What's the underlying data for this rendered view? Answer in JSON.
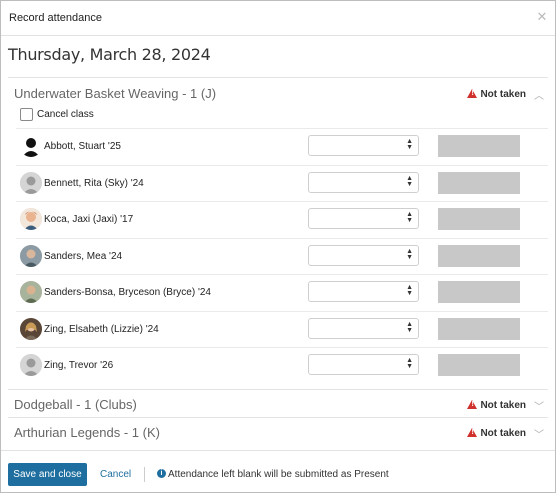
{
  "dialog": {
    "title": "Record attendance",
    "close_icon": "close-icon"
  },
  "date": "Thursday, March 28, 2024",
  "sections": [
    {
      "name": "Underwater Basket Weaving - 1 (J)",
      "status": "Not taken",
      "expanded": true,
      "cancel_label": "Cancel class",
      "students": [
        {
          "name": "Abbott, Stuart '25",
          "avatar": "silhouette-black"
        },
        {
          "name": "Bennett, Rita (Sky) '24",
          "avatar": "placeholder"
        },
        {
          "name": "Koca, Jaxi (Jaxi) '17",
          "avatar": "photo"
        },
        {
          "name": "Sanders, Mea '24",
          "avatar": "photo"
        },
        {
          "name": "Sanders-Bonsa, Bryceson (Bryce) '24",
          "avatar": "photo"
        },
        {
          "name": "Zing, Elsabeth (Lizzie) '24",
          "avatar": "photo"
        },
        {
          "name": "Zing, Trevor '26",
          "avatar": "placeholder"
        }
      ]
    },
    {
      "name": "Dodgeball - 1 (Clubs)",
      "status": "Not taken",
      "expanded": false
    },
    {
      "name": "Arthurian Legends - 1 (K)",
      "status": "Not taken",
      "expanded": false
    }
  ],
  "footer": {
    "save_label": "Save and close",
    "cancel_label": "Cancel",
    "info_text": "Attendance left blank will be submitted as Present"
  },
  "colors": {
    "primary": "#1e6f9f",
    "warning": "#d0312d",
    "note_field": "#c8c8c8"
  }
}
